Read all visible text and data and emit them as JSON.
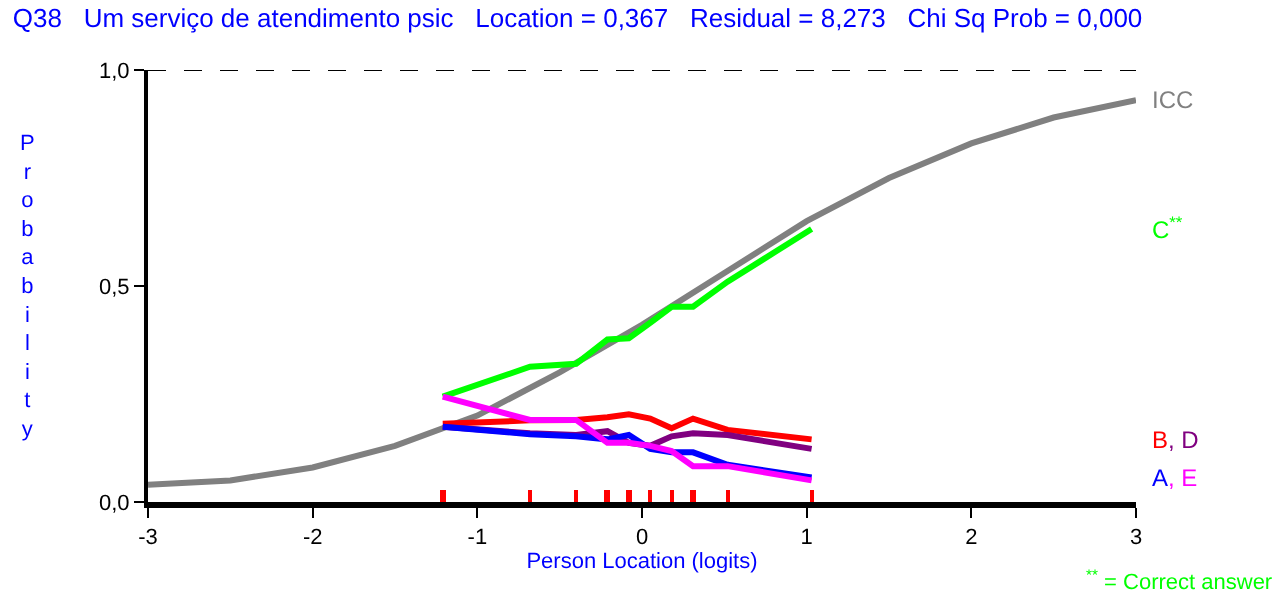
{
  "chart_data": {
    "type": "line",
    "title": "Q38   Um serviço de atendimento psic   Location = 0,367   Residual = 8,273   Chi Sq Prob = 0,000",
    "xlabel": "Person Location (logits)",
    "ylabel": "Probability",
    "xlim": [
      -3,
      3
    ],
    "xticks": [
      -3,
      -2,
      -1,
      0,
      1,
      2,
      3
    ],
    "ylim": [
      0,
      1
    ],
    "yticks": [
      {
        "value": 0,
        "label": "0,0"
      },
      {
        "value": 0.5,
        "label": "0,5"
      },
      {
        "value": 1,
        "label": "1,0"
      }
    ],
    "legend": false,
    "marker": "none",
    "line_style": "solid",
    "ref_lines": [
      {
        "axis": "y",
        "value": 1,
        "label": null,
        "color": "#000000",
        "line_style": "dashed"
      }
    ],
    "annotations": [
      "$^{**}$ = Correct answer"
    ],
    "series": [
      {
        "name": "ICC",
        "color": "#808080",
        "x": [
          -3,
          -2.5,
          -2,
          -1.5,
          -1,
          -0.5,
          0,
          0.5,
          1,
          1.5,
          2,
          2.5,
          3
        ],
        "values": [
          0.04,
          0.05,
          0.08,
          0.13,
          0.2,
          0.3,
          0.41,
          0.53,
          0.65,
          0.75,
          0.83,
          0.89,
          0.93
        ]
      },
      {
        "name": "C$^{**}$",
        "color": "#00ff00",
        "x": [
          -1.21,
          -0.68,
          -0.4,
          -0.21,
          -0.08,
          0.05,
          0.18,
          0.31,
          0.52,
          1.03
        ],
        "values": [
          0.244,
          0.313,
          0.32,
          0.376,
          0.379,
          0.415,
          0.452,
          0.452,
          0.51,
          0.632
        ]
      },
      {
        "name": "B",
        "color": "#ff0000",
        "x": [
          -1.21,
          -0.68,
          -0.4,
          -0.21,
          -0.08,
          0.05,
          0.18,
          0.31,
          0.52,
          1.03
        ],
        "values": [
          0.181,
          0.189,
          0.19,
          0.196,
          0.203,
          0.193,
          0.171,
          0.193,
          0.167,
          0.145
        ]
      },
      {
        "name": ", D",
        "color": "#800080",
        "x": [
          -1.21,
          -0.68,
          -0.4,
          -0.21,
          -0.08,
          0.05,
          0.18,
          0.31,
          0.52,
          1.03
        ],
        "values": [
          0.174,
          0.159,
          0.155,
          0.164,
          0.137,
          0.13,
          0.152,
          0.159,
          0.155,
          0.123
        ]
      },
      {
        "name": "A",
        "color": "#0000ff",
        "x": [
          -1.21,
          -0.68,
          -0.4,
          -0.21,
          -0.08,
          0.05,
          0.18,
          0.31,
          0.52,
          1.03
        ],
        "values": [
          0.174,
          0.157,
          0.152,
          0.145,
          0.155,
          0.123,
          0.115,
          0.115,
          0.086,
          0.057
        ]
      },
      {
        "name": ", E",
        "color": "#ff00ff",
        "x": [
          -1.21,
          -0.68,
          -0.4,
          -0.21,
          -0.08,
          0.05,
          0.18,
          0.31,
          0.52,
          1.03
        ],
        "values": [
          0.244,
          0.19,
          0.19,
          0.137,
          0.137,
          0.13,
          0.118,
          0.083,
          0.083,
          0.05
        ]
      },
      {
        "type": "bar",
        "color": "#ff0000",
        "x": [
          -1.21,
          -0.68,
          -0.4,
          -0.21,
          -0.08,
          0.05,
          0.18,
          0.31,
          0.52,
          1.03
        ],
        "values": [
          0.03,
          0.03,
          0.03,
          0.03,
          0.03,
          0.03,
          0.03,
          0.03,
          0.03,
          0.03
        ]
      }
    ]
  }
}
